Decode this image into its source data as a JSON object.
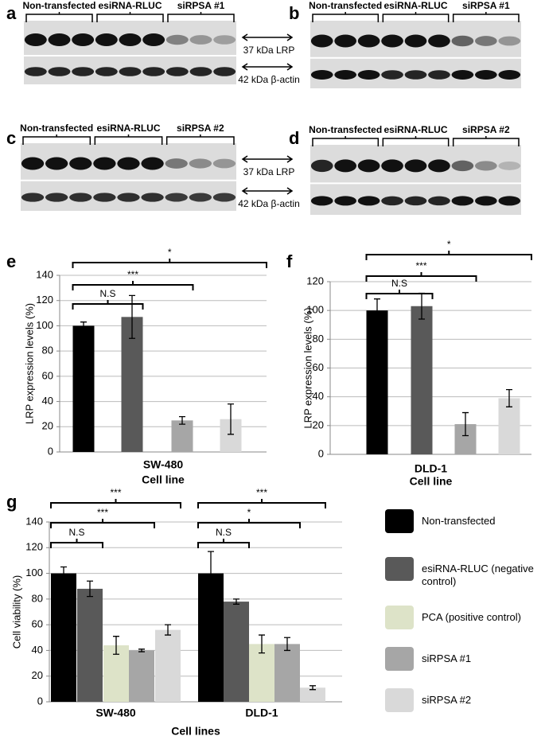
{
  "blots": [
    {
      "panel": "a",
      "groups": [
        "Non-transfected",
        "esiRNA-RLUC",
        "siRPSA #1"
      ],
      "markers": [
        "37 kDa LRP",
        "42 kDa β-actin"
      ]
    },
    {
      "panel": "b",
      "groups": [
        "Non-transfected",
        "esiRNA-RLUC",
        "siRPSA #1"
      ]
    },
    {
      "panel": "c",
      "groups": [
        "Non-transfected",
        "esiRNA-RLUC",
        "siRPSA #2"
      ],
      "markers": [
        "37 kDa LRP",
        "42 kDa β-actin"
      ]
    },
    {
      "panel": "d",
      "groups": [
        "Non-transfected",
        "esiRNA-RLUC",
        "siRPSA #2"
      ]
    }
  ],
  "chart_data": [
    {
      "type": "bar",
      "panel": "e",
      "ylabel": "LRP expression levels (%)",
      "xlabel": "Cell line",
      "categories": [
        "SW-480"
      ],
      "ylim": [
        0,
        140
      ],
      "yticks": [
        0,
        20,
        40,
        60,
        80,
        100,
        120,
        140
      ],
      "grid": true,
      "series": [
        {
          "color": "#000000",
          "values": [
            100
          ],
          "errors": [
            3
          ]
        },
        {
          "color": "#595959",
          "values": [
            107
          ],
          "errors": [
            17
          ]
        },
        {
          "color": "#a6a6a6",
          "values": [
            25
          ],
          "errors": [
            3
          ]
        },
        {
          "color": "#d9d9d9",
          "values": [
            26
          ],
          "errors": [
            12
          ]
        }
      ],
      "annotations": [
        [
          "N.S",
          "***",
          "*"
        ]
      ]
    },
    {
      "type": "bar",
      "panel": "f",
      "ylabel": "LRP expression levels (%)",
      "xlabel": "Cell line",
      "categories": [
        "DLD-1"
      ],
      "ylim": [
        0,
        120
      ],
      "yticks": [
        0,
        20,
        40,
        60,
        80,
        100,
        120
      ],
      "grid": true,
      "series": [
        {
          "color": "#000000",
          "values": [
            100
          ],
          "errors": [
            8
          ]
        },
        {
          "color": "#595959",
          "values": [
            103
          ],
          "errors": [
            9
          ]
        },
        {
          "color": "#a6a6a6",
          "values": [
            21
          ],
          "errors": [
            8
          ]
        },
        {
          "color": "#d9d9d9",
          "values": [
            39
          ],
          "errors": [
            6
          ]
        }
      ],
      "annotations": [
        [
          "N.S",
          "***",
          "*"
        ]
      ]
    },
    {
      "type": "bar",
      "panel": "g",
      "ylabel": "Cell viability (%)",
      "xlabel": "Cell lines",
      "categories": [
        "SW-480",
        "DLD-1"
      ],
      "ylim": [
        0,
        140
      ],
      "yticks": [
        0,
        20,
        40,
        60,
        80,
        100,
        120,
        140
      ],
      "grid": true,
      "legend": "right",
      "series": [
        {
          "name": "Non-transfected",
          "color": "#000000",
          "values": [
            100,
            100
          ],
          "errors": [
            5,
            17
          ]
        },
        {
          "name": "esiRNA-RLUC (negative control)",
          "color": "#595959",
          "values": [
            88,
            78
          ],
          "errors": [
            6,
            2
          ]
        },
        {
          "name": "PCA (positive control)",
          "color": "#dde3c8",
          "values": [
            44,
            45
          ],
          "errors": [
            7,
            7
          ]
        },
        {
          "name": "siRPSA #1",
          "color": "#a6a6a6",
          "values": [
            40,
            45
          ],
          "errors": [
            1,
            5
          ]
        },
        {
          "name": "siRPSA #2",
          "color": "#d9d9d9",
          "values": [
            56,
            11
          ],
          "errors": [
            4,
            1.5
          ]
        }
      ],
      "annotations": [
        [
          "N.S",
          "***",
          "***"
        ],
        [
          "N.S",
          "*",
          "***"
        ]
      ]
    }
  ]
}
